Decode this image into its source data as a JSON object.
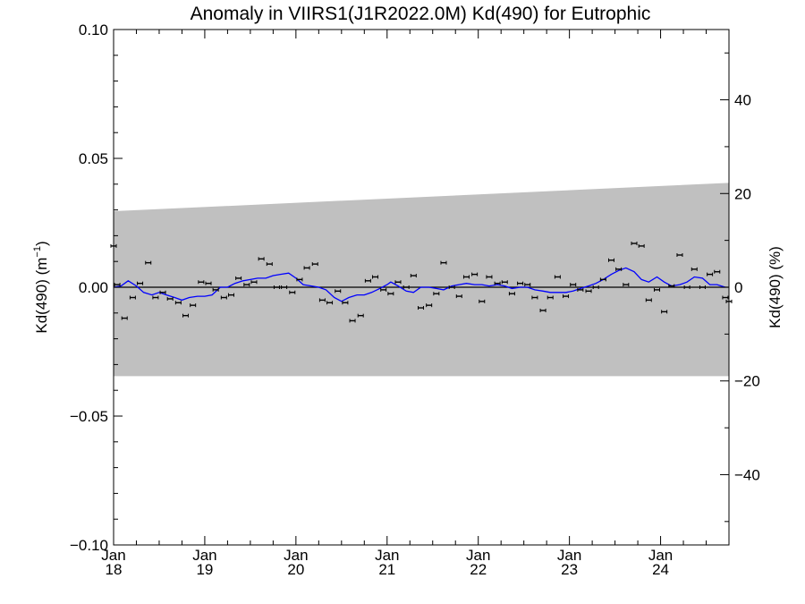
{
  "chart_data": {
    "type": "scatter",
    "title": "Anomaly in VIIRS1(J1R2022.0M) Kd(490) for Eutrophic",
    "ylabel_left": {
      "main": "Kd(490) (m",
      "sup": "−1",
      "close": ")"
    },
    "ylabel_right": "Kd(490) (%)",
    "ylim_left": [
      -0.1,
      0.1
    ],
    "ylim_right": [
      -55,
      55
    ],
    "yticks_left": [
      {
        "value": 0.1,
        "label": "0.10"
      },
      {
        "value": 0.05,
        "label": "0.05"
      },
      {
        "value": 0.0,
        "label": "0.00"
      },
      {
        "value": -0.05,
        "label": "−0.05"
      },
      {
        "value": -0.1,
        "label": "−0.10"
      }
    ],
    "yticks_right": [
      {
        "value": 40,
        "label": "40"
      },
      {
        "value": 20,
        "label": "20"
      },
      {
        "value": 0,
        "label": "0"
      },
      {
        "value": -20,
        "label": "−20"
      },
      {
        "value": -40,
        "label": "−40"
      }
    ],
    "xlim": [
      2018.0,
      2024.75
    ],
    "xticks": [
      {
        "value": 2018,
        "line1": "Jan",
        "line2": "18"
      },
      {
        "value": 2019,
        "line1": "Jan",
        "line2": "19"
      },
      {
        "value": 2020,
        "line1": "Jan",
        "line2": "20"
      },
      {
        "value": 2021,
        "line1": "Jan",
        "line2": "21"
      },
      {
        "value": 2022,
        "line1": "Jan",
        "line2": "22"
      },
      {
        "value": 2023,
        "line1": "Jan",
        "line2": "23"
      },
      {
        "value": 2024,
        "line1": "Jan",
        "line2": "24"
      }
    ],
    "band": {
      "upper_start": 0.0295,
      "upper_end": 0.0405,
      "lower_start": -0.0345,
      "lower_end": -0.0345,
      "color": "#c0c0c0"
    },
    "zero_line": 0,
    "line_color": "#0000ff",
    "point_color": "#000000",
    "points": [
      {
        "x": 2018.0,
        "y": 0.016
      },
      {
        "x": 2018.04,
        "y": 0.001
      },
      {
        "x": 2018.12,
        "y": -0.012
      },
      {
        "x": 2018.21,
        "y": -0.004
      },
      {
        "x": 2018.29,
        "y": 0.0015
      },
      {
        "x": 2018.38,
        "y": 0.0095
      },
      {
        "x": 2018.46,
        "y": -0.004
      },
      {
        "x": 2018.54,
        "y": -0.002
      },
      {
        "x": 2018.62,
        "y": -0.0045
      },
      {
        "x": 2018.71,
        "y": -0.006
      },
      {
        "x": 2018.79,
        "y": -0.011
      },
      {
        "x": 2018.87,
        "y": -0.007
      },
      {
        "x": 2018.96,
        "y": 0.002
      },
      {
        "x": 2019.04,
        "y": 0.0015
      },
      {
        "x": 2019.12,
        "y": -0.001
      },
      {
        "x": 2019.21,
        "y": -0.004
      },
      {
        "x": 2019.29,
        "y": -0.003
      },
      {
        "x": 2019.37,
        "y": 0.0035
      },
      {
        "x": 2019.46,
        "y": 0.001
      },
      {
        "x": 2019.54,
        "y": 0.002
      },
      {
        "x": 2019.62,
        "y": 0.011
      },
      {
        "x": 2019.71,
        "y": 0.009
      },
      {
        "x": 2019.79,
        "y": 0.0
      },
      {
        "x": 2019.87,
        "y": 0.0
      },
      {
        "x": 2019.96,
        "y": -0.002
      },
      {
        "x": 2020.04,
        "y": 0.003
      },
      {
        "x": 2020.12,
        "y": 0.0075
      },
      {
        "x": 2020.21,
        "y": 0.009
      },
      {
        "x": 2020.29,
        "y": -0.005
      },
      {
        "x": 2020.37,
        "y": -0.006
      },
      {
        "x": 2020.46,
        "y": -0.0015
      },
      {
        "x": 2020.54,
        "y": -0.006
      },
      {
        "x": 2020.62,
        "y": -0.013
      },
      {
        "x": 2020.71,
        "y": -0.011
      },
      {
        "x": 2020.79,
        "y": 0.0025
      },
      {
        "x": 2020.87,
        "y": 0.004
      },
      {
        "x": 2020.96,
        "y": -0.001
      },
      {
        "x": 2021.04,
        "y": -0.0025
      },
      {
        "x": 2021.12,
        "y": 0.002
      },
      {
        "x": 2021.21,
        "y": 0.0
      },
      {
        "x": 2021.29,
        "y": 0.0045
      },
      {
        "x": 2021.37,
        "y": -0.008
      },
      {
        "x": 2021.46,
        "y": -0.007
      },
      {
        "x": 2021.54,
        "y": -0.0025
      },
      {
        "x": 2021.62,
        "y": 0.0095
      },
      {
        "x": 2021.71,
        "y": 0.0
      },
      {
        "x": 2021.79,
        "y": -0.0035
      },
      {
        "x": 2021.87,
        "y": 0.004
      },
      {
        "x": 2021.96,
        "y": 0.005
      },
      {
        "x": 2022.04,
        "y": -0.0055
      },
      {
        "x": 2022.12,
        "y": 0.004
      },
      {
        "x": 2022.21,
        "y": 0.0015
      },
      {
        "x": 2022.29,
        "y": 0.002
      },
      {
        "x": 2022.37,
        "y": -0.0025
      },
      {
        "x": 2022.46,
        "y": 0.0015
      },
      {
        "x": 2022.54,
        "y": 0.001
      },
      {
        "x": 2022.62,
        "y": -0.004
      },
      {
        "x": 2022.71,
        "y": -0.009
      },
      {
        "x": 2022.79,
        "y": -0.004
      },
      {
        "x": 2022.87,
        "y": 0.004
      },
      {
        "x": 2022.96,
        "y": -0.0035
      },
      {
        "x": 2023.04,
        "y": 0.001
      },
      {
        "x": 2023.12,
        "y": -0.001
      },
      {
        "x": 2023.21,
        "y": -0.0015
      },
      {
        "x": 2023.29,
        "y": 0.0
      },
      {
        "x": 2023.37,
        "y": 0.003
      },
      {
        "x": 2023.46,
        "y": 0.0105
      },
      {
        "x": 2023.54,
        "y": 0.007
      },
      {
        "x": 2023.62,
        "y": 0.001
      },
      {
        "x": 2023.71,
        "y": 0.017
      },
      {
        "x": 2023.79,
        "y": 0.016
      },
      {
        "x": 2023.87,
        "y": -0.005
      },
      {
        "x": 2023.96,
        "y": -0.001
      },
      {
        "x": 2024.04,
        "y": -0.0095
      },
      {
        "x": 2024.12,
        "y": 0.0005
      },
      {
        "x": 2024.21,
        "y": 0.0125
      },
      {
        "x": 2024.29,
        "y": 0.0
      },
      {
        "x": 2024.37,
        "y": 0.007
      },
      {
        "x": 2024.46,
        "y": 0.0
      },
      {
        "x": 2024.54,
        "y": 0.005
      },
      {
        "x": 2024.62,
        "y": 0.006
      },
      {
        "x": 2024.71,
        "y": -0.004
      },
      {
        "x": 2024.75,
        "y": -0.0055
      }
    ],
    "smoothed": [
      {
        "x": 2018.0,
        "y": 0.0
      },
      {
        "x": 2018.08,
        "y": 0.0005
      },
      {
        "x": 2018.16,
        "y": 0.0025
      },
      {
        "x": 2018.25,
        "y": 0.0005
      },
      {
        "x": 2018.33,
        "y": -0.002
      },
      {
        "x": 2018.42,
        "y": -0.003
      },
      {
        "x": 2018.5,
        "y": -0.002
      },
      {
        "x": 2018.58,
        "y": -0.003
      },
      {
        "x": 2018.67,
        "y": -0.004
      },
      {
        "x": 2018.75,
        "y": -0.005
      },
      {
        "x": 2018.83,
        "y": -0.004
      },
      {
        "x": 2018.92,
        "y": -0.0035
      },
      {
        "x": 2019.0,
        "y": -0.0035
      },
      {
        "x": 2019.08,
        "y": -0.003
      },
      {
        "x": 2019.17,
        "y": 0.0
      },
      {
        "x": 2019.25,
        "y": 0.0
      },
      {
        "x": 2019.33,
        "y": 0.0015
      },
      {
        "x": 2019.42,
        "y": 0.0025
      },
      {
        "x": 2019.5,
        "y": 0.003
      },
      {
        "x": 2019.58,
        "y": 0.0035
      },
      {
        "x": 2019.67,
        "y": 0.0035
      },
      {
        "x": 2019.75,
        "y": 0.0045
      },
      {
        "x": 2019.83,
        "y": 0.005
      },
      {
        "x": 2019.92,
        "y": 0.0055
      },
      {
        "x": 2020.0,
        "y": 0.0035
      },
      {
        "x": 2020.08,
        "y": 0.001
      },
      {
        "x": 2020.17,
        "y": 0.0005
      },
      {
        "x": 2020.25,
        "y": 0.0
      },
      {
        "x": 2020.33,
        "y": -0.001
      },
      {
        "x": 2020.42,
        "y": -0.004
      },
      {
        "x": 2020.5,
        "y": -0.0055
      },
      {
        "x": 2020.58,
        "y": -0.004
      },
      {
        "x": 2020.67,
        "y": -0.003
      },
      {
        "x": 2020.75,
        "y": -0.003
      },
      {
        "x": 2020.83,
        "y": -0.002
      },
      {
        "x": 2020.92,
        "y": -0.0005
      },
      {
        "x": 2021.0,
        "y": 0.001
      },
      {
        "x": 2021.04,
        "y": 0.002
      },
      {
        "x": 2021.12,
        "y": 0.0005
      },
      {
        "x": 2021.21,
        "y": -0.0015
      },
      {
        "x": 2021.29,
        "y": -0.002
      },
      {
        "x": 2021.37,
        "y": 0.0
      },
      {
        "x": 2021.46,
        "y": 0.0
      },
      {
        "x": 2021.54,
        "y": -0.0005
      },
      {
        "x": 2021.62,
        "y": -0.001
      },
      {
        "x": 2021.71,
        "y": 0.0005
      },
      {
        "x": 2021.79,
        "y": 0.001
      },
      {
        "x": 2021.87,
        "y": 0.0015
      },
      {
        "x": 2021.96,
        "y": 0.001
      },
      {
        "x": 2022.04,
        "y": 0.001
      },
      {
        "x": 2022.12,
        "y": 0.0005
      },
      {
        "x": 2022.21,
        "y": 0.001
      },
      {
        "x": 2022.29,
        "y": 0.0005
      },
      {
        "x": 2022.37,
        "y": -0.0005
      },
      {
        "x": 2022.46,
        "y": 0.0
      },
      {
        "x": 2022.54,
        "y": 0.0
      },
      {
        "x": 2022.62,
        "y": -0.001
      },
      {
        "x": 2022.71,
        "y": -0.0015
      },
      {
        "x": 2022.79,
        "y": -0.002
      },
      {
        "x": 2022.87,
        "y": -0.002
      },
      {
        "x": 2022.96,
        "y": -0.002
      },
      {
        "x": 2023.04,
        "y": -0.0015
      },
      {
        "x": 2023.12,
        "y": -0.0005
      },
      {
        "x": 2023.21,
        "y": 0.0005
      },
      {
        "x": 2023.29,
        "y": 0.0015
      },
      {
        "x": 2023.37,
        "y": 0.003
      },
      {
        "x": 2023.46,
        "y": 0.005
      },
      {
        "x": 2023.54,
        "y": 0.0065
      },
      {
        "x": 2023.62,
        "y": 0.0075
      },
      {
        "x": 2023.71,
        "y": 0.006
      },
      {
        "x": 2023.79,
        "y": 0.003
      },
      {
        "x": 2023.87,
        "y": 0.002
      },
      {
        "x": 2023.96,
        "y": 0.004
      },
      {
        "x": 2024.04,
        "y": 0.002
      },
      {
        "x": 2024.12,
        "y": 0.0005
      },
      {
        "x": 2024.21,
        "y": 0.001
      },
      {
        "x": 2024.29,
        "y": 0.002
      },
      {
        "x": 2024.37,
        "y": 0.004
      },
      {
        "x": 2024.46,
        "y": 0.0035
      },
      {
        "x": 2024.54,
        "y": 0.001
      },
      {
        "x": 2024.62,
        "y": 0.001
      },
      {
        "x": 2024.71,
        "y": 0.0
      }
    ]
  }
}
